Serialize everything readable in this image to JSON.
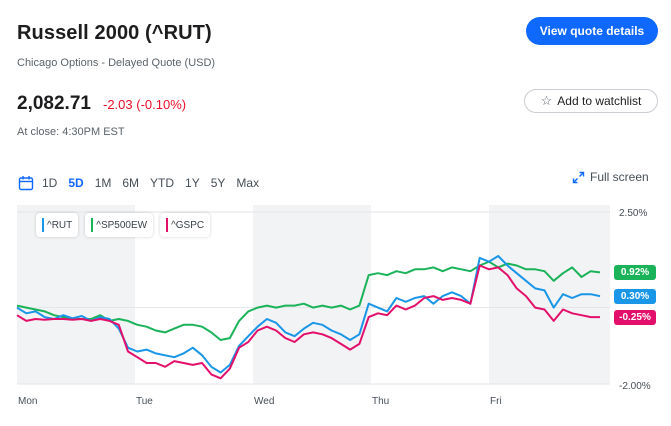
{
  "quote": {
    "title": "Russell 2000 (^RUT)",
    "subtitle": "Chicago Options - Delayed Quote (USD)",
    "price": "2,082.71",
    "change": "-2.03 (-0.10%)",
    "close_time": "At close: 4:30PM EST"
  },
  "actions": {
    "view_quote_label": "View quote details",
    "watchlist_label": "Add to watchlist",
    "watchlist_icon": "star-outline-icon",
    "fullscreen_label": "Full screen",
    "fullscreen_icon": "expand-arrows-icon"
  },
  "ranges": {
    "icon": "calendar-icon",
    "items": [
      "1D",
      "5D",
      "1M",
      "6M",
      "YTD",
      "1Y",
      "5Y",
      "Max"
    ],
    "active": "5D"
  },
  "colors": {
    "rut": "#1a96e8",
    "sp500ew": "#1bb35a",
    "gspc": "#e3106b",
    "accent": "#0f69ff",
    "negative": "#eb0f29"
  },
  "chart_data": {
    "type": "line",
    "y_unit": "%",
    "ylim": [
      -2.0,
      2.5
    ],
    "y_ticks": [
      "2.50%",
      "-2.00%"
    ],
    "days": [
      "Mon",
      "Tue",
      "Wed",
      "Thu",
      "Fri"
    ],
    "legend_placement": "top-left",
    "series": [
      {
        "name": "^RUT",
        "last_label": "0.30%",
        "values": [
          0.0,
          -0.15,
          -0.1,
          -0.25,
          -0.3,
          -0.2,
          -0.28,
          -0.22,
          -0.35,
          -0.25,
          -0.3,
          -0.55,
          -1.05,
          -1.15,
          -1.1,
          -1.2,
          -1.25,
          -1.3,
          -1.2,
          -1.05,
          -1.25,
          -1.55,
          -1.7,
          -1.5,
          -1.0,
          -0.75,
          -0.5,
          -0.3,
          -0.4,
          -0.65,
          -0.75,
          -0.55,
          -0.4,
          -0.45,
          -0.6,
          -0.7,
          -0.85,
          -0.7,
          0.1,
          0.0,
          -0.1,
          0.25,
          0.15,
          0.25,
          0.3,
          0.1,
          0.3,
          0.4,
          0.3,
          0.1,
          1.3,
          1.2,
          1.35,
          1.1,
          0.9,
          0.7,
          0.5,
          0.45,
          0.0,
          0.35,
          0.25,
          0.35,
          0.35,
          0.3
        ]
      },
      {
        "name": "^SP500EW",
        "last_label": "0.92%",
        "values": [
          0.05,
          0.0,
          -0.05,
          -0.1,
          -0.2,
          -0.25,
          -0.3,
          -0.3,
          -0.3,
          -0.2,
          -0.35,
          -0.3,
          -0.35,
          -0.45,
          -0.5,
          -0.6,
          -0.65,
          -0.55,
          -0.45,
          -0.45,
          -0.5,
          -0.65,
          -0.85,
          -0.8,
          -0.35,
          -0.1,
          0.0,
          0.05,
          0.0,
          0.05,
          0.05,
          0.1,
          0.0,
          0.05,
          0.0,
          0.05,
          -0.05,
          0.05,
          0.85,
          0.9,
          0.85,
          0.95,
          0.9,
          1.0,
          1.0,
          1.05,
          0.95,
          1.05,
          1.0,
          0.95,
          1.1,
          1.2,
          1.05,
          1.15,
          1.1,
          1.0,
          1.0,
          0.95,
          0.7,
          0.9,
          1.05,
          0.8,
          0.95,
          0.92
        ]
      },
      {
        "name": "^GSPC",
        "last_label": "-0.25%",
        "values": [
          -0.2,
          -0.35,
          -0.3,
          -0.32,
          -0.3,
          -0.3,
          -0.32,
          -0.3,
          -0.35,
          -0.3,
          -0.35,
          -0.45,
          -1.15,
          -1.3,
          -1.45,
          -1.45,
          -1.55,
          -1.4,
          -1.45,
          -1.5,
          -1.45,
          -1.75,
          -1.85,
          -1.6,
          -1.05,
          -0.9,
          -0.6,
          -0.5,
          -0.6,
          -0.8,
          -0.9,
          -0.7,
          -0.65,
          -0.7,
          -0.8,
          -0.95,
          -1.1,
          -0.95,
          -0.25,
          -0.15,
          -0.2,
          0.05,
          -0.05,
          0.05,
          0.25,
          0.3,
          0.2,
          0.25,
          0.2,
          0.1,
          1.1,
          1.0,
          1.05,
          0.85,
          0.5,
          0.3,
          0.0,
          -0.05,
          -0.35,
          -0.05,
          -0.15,
          -0.2,
          -0.25,
          -0.25
        ]
      }
    ],
    "grid": true
  }
}
